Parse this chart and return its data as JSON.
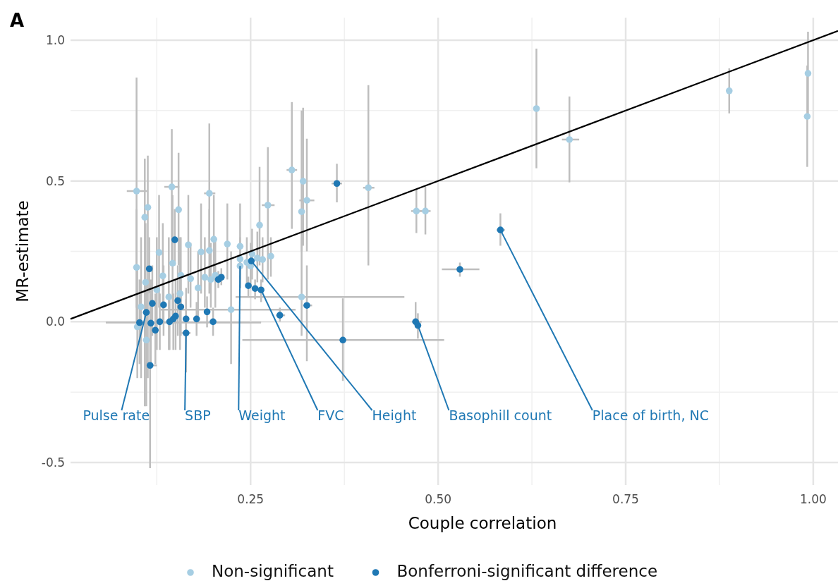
{
  "chart_data": {
    "type": "scatter",
    "title": "A",
    "xlabel": "Couple correlation",
    "ylabel": "MR-estimate",
    "xlim": [
      0.01,
      1.033
    ],
    "ylim": [
      -0.58,
      1.08
    ],
    "xticks": [
      {
        "value": 0.25,
        "label": "0.25"
      },
      {
        "value": 0.5,
        "label": "0.50"
      },
      {
        "value": 0.75,
        "label": "0.75"
      },
      {
        "value": 1,
        "label": "1.00"
      }
    ],
    "yticks": [
      {
        "value": -0.5,
        "label": "-0.5"
      },
      {
        "value": 0,
        "label": "0.0"
      },
      {
        "value": 0.5,
        "label": "0.5"
      },
      {
        "value": 1,
        "label": "1.0"
      }
    ],
    "grid": true,
    "legend": "bottom",
    "marker": "circle",
    "series": [
      {
        "name": "Non-significant",
        "color": "#a6cee3",
        "x": [
          0.098,
          0.098,
          0.109,
          0.113,
          0.145,
          0.154,
          0.195,
          0.128,
          0.133,
          0.146,
          0.167,
          0.184,
          0.195,
          0.201,
          0.219,
          0.236,
          0.125,
          0.141,
          0.156,
          0.18,
          0.224,
          0.104,
          0.111,
          0.099,
          0.11,
          0.157,
          0.17,
          0.189,
          0.197,
          0.203,
          0.236,
          0.245,
          0.252,
          0.259,
          0.266,
          0.277,
          0.236,
          0.25,
          0.262,
          0.273,
          0.305,
          0.32,
          0.325,
          0.318,
          0.318,
          0.407,
          0.471,
          0.483,
          0.631,
          0.675,
          0.888,
          0.992,
          0.993
        ],
        "values": [
          0.464,
          0.193,
          0.371,
          0.406,
          0.479,
          0.398,
          0.456,
          0.246,
          0.163,
          0.208,
          0.273,
          0.248,
          0.253,
          0.293,
          0.276,
          0.268,
          0.113,
          0.088,
          0.1,
          0.12,
          0.043,
          0.053,
          -0.065,
          -0.018,
          0.14,
          0.165,
          0.153,
          0.158,
          0.15,
          0.165,
          0.198,
          0.211,
          0.241,
          0.226,
          0.221,
          0.233,
          0.223,
          0.198,
          0.343,
          0.414,
          0.539,
          0.499,
          0.431,
          0.391,
          0.088,
          0.476,
          0.393,
          0.393,
          0.757,
          0.647,
          0.82,
          0.729,
          0.882
        ],
        "errors": [
          [
            0.05,
            0.867
          ],
          [
            0.0,
            0.4
          ],
          [
            -0.3,
            0.579
          ],
          [
            -0.2,
            0.59
          ],
          [
            0.2,
            0.684
          ],
          [
            0.2,
            0.6
          ],
          [
            0.25,
            0.704
          ],
          [
            0.05,
            0.45
          ],
          [
            0.0,
            0.35
          ],
          [
            0.0,
            0.45
          ],
          [
            0.1,
            0.45
          ],
          [
            0.1,
            0.42
          ],
          [
            0.1,
            0.4
          ],
          [
            0.15,
            0.45
          ],
          [
            0.15,
            0.42
          ],
          [
            0.12,
            0.42
          ],
          [
            -0.1,
            0.3
          ],
          [
            -0.1,
            0.3
          ],
          [
            -0.1,
            0.3
          ],
          [
            0.0,
            0.25
          ],
          [
            -0.15,
            0.25
          ],
          [
            -0.2,
            0.3
          ],
          [
            -0.3,
            0.15
          ],
          [
            -0.2,
            0.2
          ],
          [
            -0.05,
            0.35
          ],
          [
            0.05,
            0.3
          ],
          [
            0.05,
            0.28
          ],
          [
            0.05,
            0.3
          ],
          [
            0.05,
            0.28
          ],
          [
            0.05,
            0.3
          ],
          [
            0.12,
            0.28
          ],
          [
            0.12,
            0.3
          ],
          [
            0.15,
            0.33
          ],
          [
            0.14,
            0.32
          ],
          [
            0.14,
            0.3
          ],
          [
            0.16,
            0.3
          ],
          [
            0.15,
            0.3
          ],
          [
            0.12,
            0.28
          ],
          [
            0.2,
            0.55
          ],
          [
            0.15,
            0.62
          ],
          [
            0.33,
            0.78
          ],
          [
            0.27,
            0.76
          ],
          [
            0.25,
            0.65
          ],
          [
            0.25,
            0.75
          ],
          [
            -0.05,
            0.3
          ],
          [
            0.2,
            0.84
          ],
          [
            0.315,
            0.47
          ],
          [
            0.31,
            0.48
          ],
          [
            0.545,
            0.97
          ],
          [
            0.495,
            0.8
          ],
          [
            0.74,
            0.9
          ],
          [
            0.55,
            0.91
          ],
          [
            0.73,
            1.03
          ]
        ],
        "xerrors": [
          [
            0.085,
            0.112
          ],
          null,
          null,
          null,
          [
            0.135,
            0.155
          ],
          null,
          [
            0.188,
            0.203
          ],
          null,
          null,
          null,
          null,
          null,
          null,
          null,
          null,
          null,
          null,
          null,
          null,
          null,
          [
            0.13,
            0.31
          ],
          null,
          null,
          null,
          null,
          null,
          null,
          null,
          null,
          null,
          null,
          null,
          null,
          null,
          null,
          null,
          null,
          null,
          null,
          [
            0.265,
            0.282
          ],
          [
            0.298,
            0.312
          ],
          null,
          [
            0.315,
            0.335
          ],
          null,
          [
            0.23,
            0.455
          ],
          [
            0.4,
            0.415
          ],
          [
            0.464,
            0.478
          ],
          [
            0.476,
            0.49
          ],
          null,
          [
            0.665,
            0.688
          ],
          null,
          null,
          null
        ]
      },
      {
        "name": "Bonferroni-significant difference",
        "color": "#1f78b4",
        "x": [
          0.149,
          0.115,
          0.102,
          0.111,
          0.119,
          0.117,
          0.123,
          0.116,
          0.129,
          0.134,
          0.142,
          0.147,
          0.153,
          0.157,
          0.15,
          0.164,
          0.164,
          0.178,
          0.192,
          0.2,
          0.207,
          0.211,
          0.251,
          0.247,
          0.256,
          0.264,
          0.289,
          0.325,
          0.365,
          0.373,
          0.47,
          0.473,
          0.529,
          0.583
        ],
        "values": [
          0.291,
          0.188,
          -0.003,
          0.033,
          0.065,
          -0.005,
          -0.03,
          -0.155,
          0.0,
          0.06,
          0.0,
          0.01,
          0.075,
          0.053,
          0.02,
          0.01,
          -0.04,
          0.01,
          0.035,
          0.0,
          0.15,
          0.158,
          0.216,
          0.128,
          0.118,
          0.113,
          0.023,
          0.058,
          0.491,
          -0.065,
          0.0,
          -0.013,
          0.186,
          0.326
        ],
        "errors": [
          [
            0.2,
            0.4
          ],
          [
            0.1,
            0.3
          ],
          [
            -0.15,
            0.15
          ],
          null,
          [
            -0.05,
            0.2
          ],
          [
            -0.15,
            0.15
          ],
          [
            -0.15,
            0.1
          ],
          [
            -0.52,
            0.1
          ],
          [
            -0.1,
            0.1
          ],
          [
            -0.05,
            0.2
          ],
          [
            -0.1,
            0.1
          ],
          [
            -0.1,
            0.1
          ],
          [
            -0.05,
            0.2
          ],
          [
            -0.05,
            0.15
          ],
          [
            -0.1,
            0.15
          ],
          [
            -0.1,
            0.12
          ],
          [
            -0.18,
            0.08
          ],
          [
            -0.05,
            0.07
          ],
          [
            -0.02,
            0.09
          ],
          [
            -0.05,
            0.05
          ],
          [
            0.12,
            0.18
          ],
          [
            0.13,
            0.19
          ],
          [
            0.19,
            0.24
          ],
          [
            0.09,
            0.16
          ],
          [
            0.08,
            0.15
          ],
          [
            0.07,
            0.15
          ],
          [
            0.0,
            0.05
          ],
          [
            -0.14,
            0.2
          ],
          [
            0.424,
            0.561
          ],
          [
            -0.21,
            0.083
          ],
          [
            -0.02,
            0.07
          ],
          [
            -0.06,
            0.03
          ],
          [
            0.16,
            0.21
          ],
          [
            0.27,
            0.385
          ]
        ],
        "xerrors": [
          null,
          null,
          [
            0.057,
            0.264
          ],
          null,
          null,
          null,
          null,
          [
            0.11,
            0.125
          ],
          null,
          null,
          null,
          null,
          null,
          null,
          null,
          null,
          [
            0.158,
            0.17
          ],
          null,
          null,
          null,
          null,
          null,
          null,
          null,
          null,
          null,
          [
            0.284,
            0.296
          ],
          [
            0.32,
            0.332
          ],
          [
            0.358,
            0.372
          ],
          [
            0.239,
            0.508
          ],
          [
            0.465,
            0.478
          ],
          null,
          [
            0.505,
            0.555
          ],
          [
            0.578,
            0.589
          ]
        ]
      },
      {
        "type": "line",
        "marker": "none",
        "color": "#000000",
        "x": [
          0.01,
          1.033
        ],
        "values": [
          0.01,
          1.033
        ]
      }
    ],
    "annotations": [
      {
        "text": "Pulse rate",
        "x": 0.111,
        "y": 0.033
      },
      {
        "text": "SBP",
        "x": 0.164,
        "y": -0.04
      },
      {
        "text": "Weight",
        "x": 0.236,
        "y": 0.198
      },
      {
        "text": "FVC",
        "x": 0.264,
        "y": 0.113
      },
      {
        "text": "Height",
        "x": 0.251,
        "y": 0.216
      },
      {
        "text": "Basophill count",
        "x": 0.473,
        "y": -0.013
      },
      {
        "text": "Place of birth, NC",
        "x": 0.583,
        "y": 0.326
      }
    ]
  }
}
